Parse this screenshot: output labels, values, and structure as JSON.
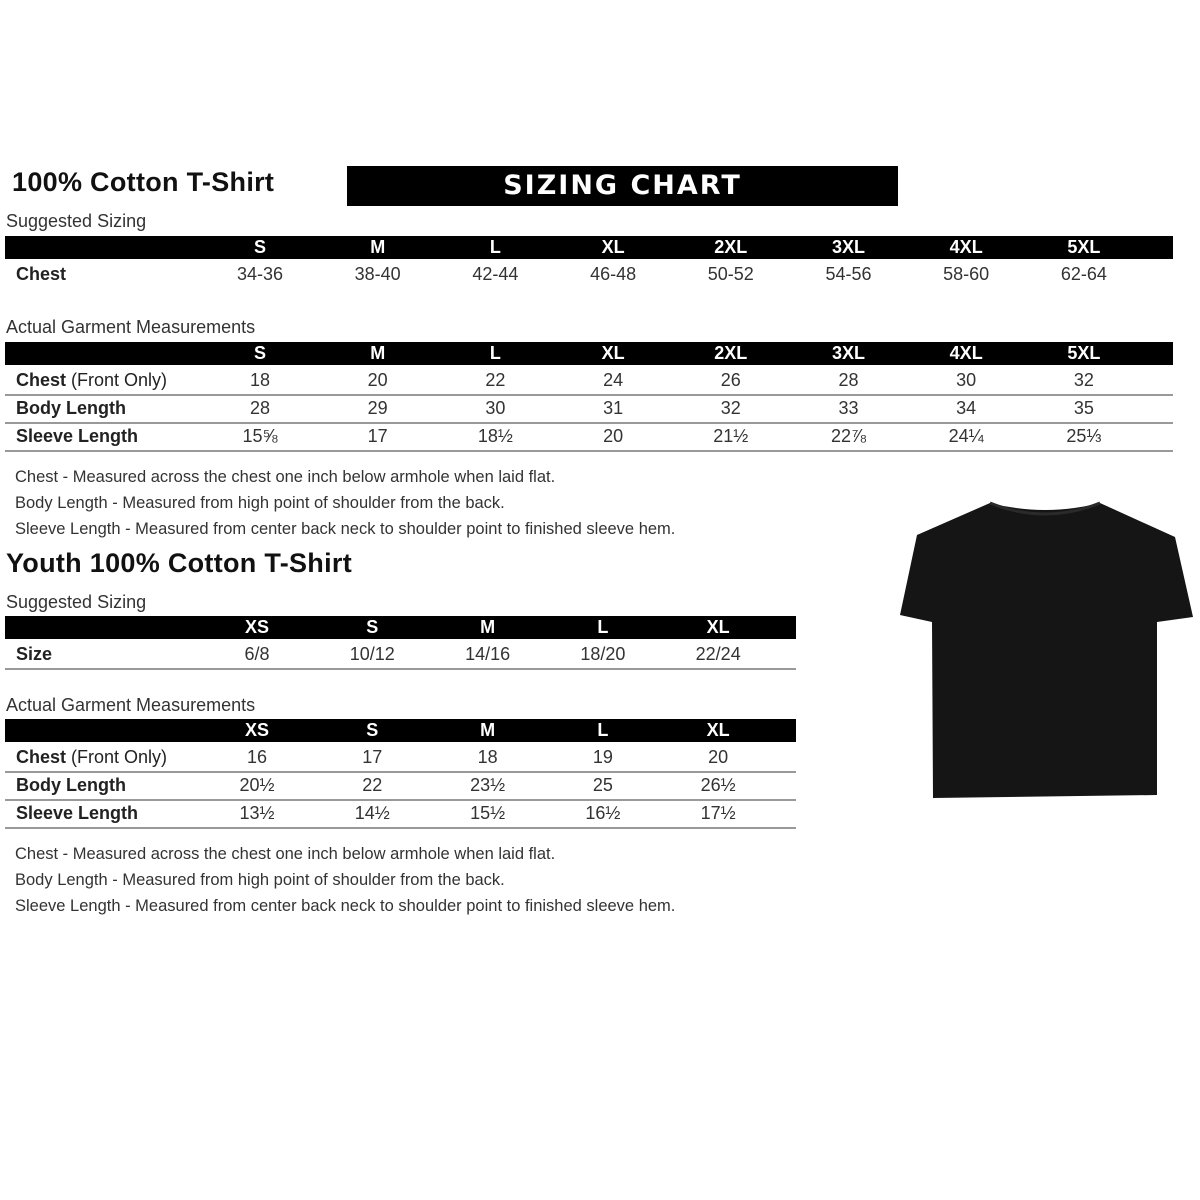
{
  "adult": {
    "title": "100% Cotton T-Shirt",
    "banner": "SIZING CHART",
    "suggested": {
      "label": "Suggested Sizing",
      "sizes": [
        "S",
        "M",
        "L",
        "XL",
        "2XL",
        "3XL",
        "4XL",
        "5XL"
      ],
      "rows": [
        {
          "label": "Chest",
          "values": [
            "34-36",
            "38-40",
            "42-44",
            "46-48",
            "50-52",
            "54-56",
            "58-60",
            "62-64"
          ]
        }
      ]
    },
    "actual": {
      "label": "Actual Garment Measurements",
      "sizes": [
        "S",
        "M",
        "L",
        "XL",
        "2XL",
        "3XL",
        "4XL",
        "5XL"
      ],
      "rows": [
        {
          "label": "Chest",
          "label_note": " (Front Only)",
          "values": [
            "18",
            "20",
            "22",
            "24",
            "26",
            "28",
            "30",
            "32"
          ]
        },
        {
          "label": "Body Length",
          "values": [
            "28",
            "29",
            "30",
            "31",
            "32",
            "33",
            "34",
            "35"
          ]
        },
        {
          "label": "Sleeve Length",
          "values": [
            "15⅝",
            "17",
            "18½",
            "20",
            "21½",
            "22⅞",
            "24¼",
            "25⅓"
          ]
        }
      ]
    },
    "notes": [
      "Chest - Measured across the chest one inch below armhole when laid flat.",
      "Body Length - Measured from high point of shoulder from the back.",
      "Sleeve Length - Measured from center back neck to shoulder point to finished sleeve hem."
    ]
  },
  "youth": {
    "title": "Youth 100% Cotton T-Shirt",
    "suggested": {
      "label": "Suggested Sizing",
      "sizes": [
        "XS",
        "S",
        "M",
        "L",
        "XL"
      ],
      "rows": [
        {
          "label": "Size",
          "values": [
            "6/8",
            "10/12",
            "14/16",
            "18/20",
            "22/24"
          ]
        }
      ]
    },
    "actual": {
      "label": "Actual Garment Measurements",
      "sizes": [
        "XS",
        "S",
        "M",
        "L",
        "XL"
      ],
      "rows": [
        {
          "label": "Chest",
          "label_note": " (Front Only)",
          "values": [
            "16",
            "17",
            "18",
            "19",
            "20"
          ]
        },
        {
          "label": "Body Length",
          "values": [
            "20½",
            "22",
            "23½",
            "25",
            "26½"
          ]
        },
        {
          "label": "Sleeve Length",
          "values": [
            "13½",
            "14½",
            "15½",
            "16½",
            "17½"
          ]
        }
      ]
    },
    "notes": [
      "Chest - Measured across the chest one inch below armhole when laid flat.",
      "Body Length - Measured from high point of shoulder from the back.",
      "Sleeve Length - Measured from center back neck to shoulder point to finished sleeve hem."
    ]
  },
  "image": {
    "icon": "black-t-shirt",
    "color": "#141414"
  }
}
